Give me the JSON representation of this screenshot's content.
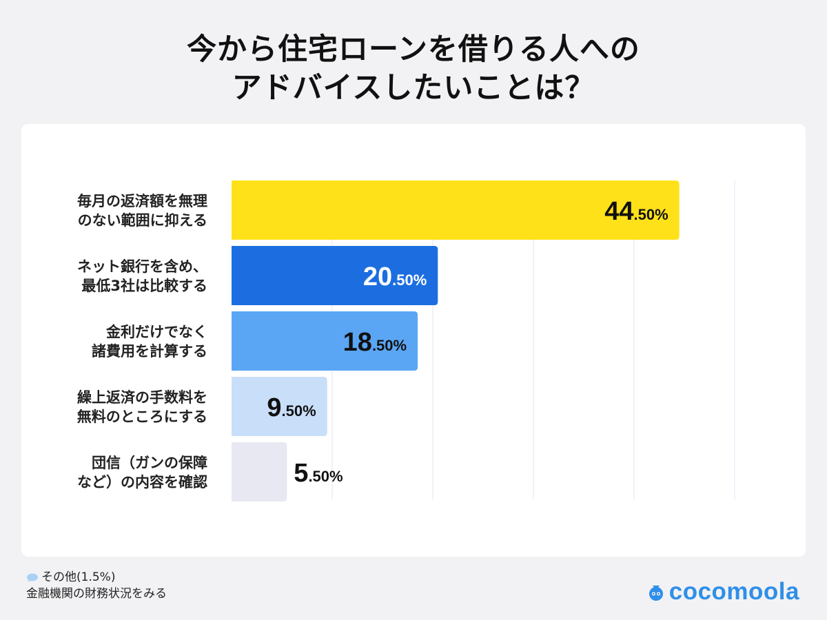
{
  "title": {
    "line1": "今から住宅ローンを借りる人への",
    "line2": "アドバイスしたいことは？"
  },
  "chart_data": {
    "type": "bar",
    "orientation": "horizontal",
    "categories": [
      [
        "毎月の返済額を無理",
        "のない範囲に抑える"
      ],
      [
        "ネット銀行を含め、",
        "最低3社は比較する"
      ],
      [
        "金利だけでなく",
        "諸費用を計算する"
      ],
      [
        "繰上返済の手数料を",
        "無料のところにする"
      ],
      [
        "団信（ガンの保障",
        "など）の内容を確認"
      ]
    ],
    "values": [
      44.5,
      20.5,
      18.5,
      9.5,
      5.5
    ],
    "value_labels": [
      {
        "major": "44",
        "minor": ".50%"
      },
      {
        "major": "20",
        "minor": ".50%"
      },
      {
        "major": "18",
        "minor": ".50%"
      },
      {
        "major": "9",
        "minor": ".50%"
      },
      {
        "major": "5",
        "minor": ".50%"
      }
    ],
    "xlim": [
      0,
      50
    ],
    "grid": true,
    "colors": [
      "#ffe11a",
      "#1c6ee0",
      "#5aa6f5",
      "#c9def9",
      "#e8e8f2"
    ],
    "label_colors": [
      "#111111",
      "#ffffff",
      "#111111",
      "#111111",
      "#111111"
    ],
    "grid_color": "#dfe4f0",
    "title": "",
    "xlabel": "",
    "ylabel": ""
  },
  "footnote": {
    "line1": "その他(1.5%)",
    "line2": "金融機関の財務状況をみる",
    "icon": "speech-bubble-icon"
  },
  "brand": {
    "name": "cocomoola",
    "color": "#2f8fe8",
    "icon": "bag-logo-icon"
  }
}
